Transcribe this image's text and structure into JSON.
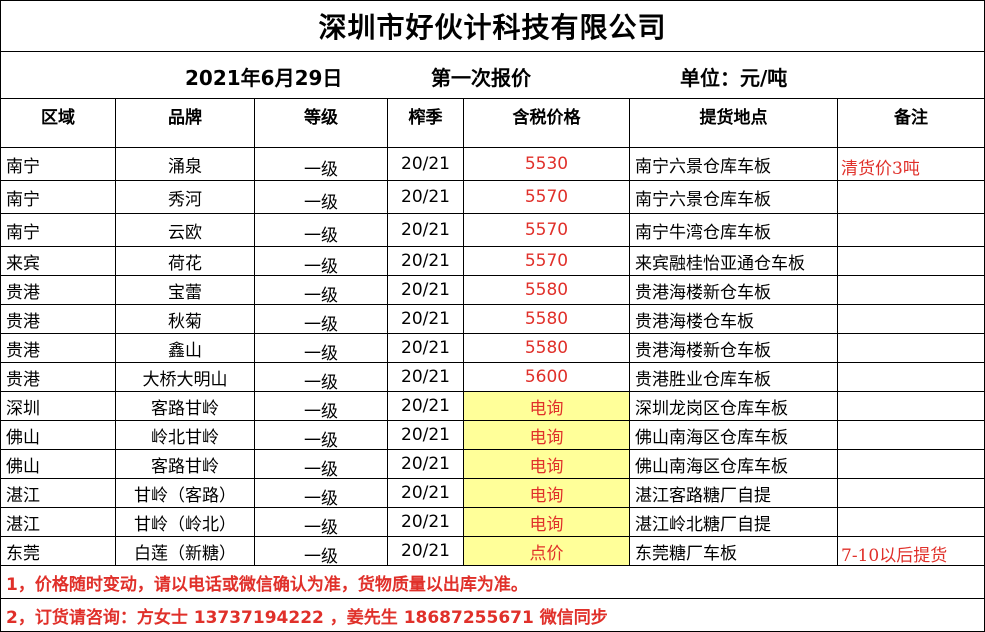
{
  "company": "深圳市好伙计科技有限公司",
  "date": "2021年6月29日",
  "quote_round": "第一次报价",
  "unit": "单位：元/吨",
  "columns": [
    "区域",
    "品牌",
    "等级",
    "榨季",
    "含税价格",
    "提货地点",
    "备注"
  ],
  "rows": [
    {
      "region": "南宁",
      "brand": "涌泉",
      "grade": "一级",
      "season": "20/21",
      "price": "5530",
      "location": "南宁六景仓库车板",
      "note": "清货价3吨"
    },
    {
      "region": "南宁",
      "brand": "秀河",
      "grade": "一级",
      "season": "20/21",
      "price": "5570",
      "location": "南宁六景仓库车板",
      "note": ""
    },
    {
      "region": "南宁",
      "brand": "云欧",
      "grade": "一级",
      "season": "20/21",
      "price": "5570",
      "location": "南宁牛湾仓库车板",
      "note": ""
    },
    {
      "region": "来宾",
      "brand": "荷花",
      "grade": "一级",
      "season": "20/21",
      "price": "5570",
      "location": "来宾融桂怡亚通仓车板",
      "note": ""
    },
    {
      "region": "贵港",
      "brand": "宝蕾",
      "grade": "一级",
      "season": "20/21",
      "price": "5580",
      "location": "贵港海楼新仓车板",
      "note": ""
    },
    {
      "region": "贵港",
      "brand": "秋菊",
      "grade": "一级",
      "season": "20/21",
      "price": "5580",
      "location": "贵港海楼仓车板",
      "note": ""
    },
    {
      "region": "贵港",
      "brand": "鑫山",
      "grade": "一级",
      "season": "20/21",
      "price": "5580",
      "location": "贵港海楼新仓车板",
      "note": ""
    },
    {
      "region": "贵港",
      "brand": "大桥大明山",
      "grade": "一级",
      "season": "20/21",
      "price": "5600",
      "location": "贵港胜业仓库车板",
      "note": ""
    },
    {
      "region": "深圳",
      "brand": "客路甘岭",
      "grade": "一级",
      "season": "20/21",
      "price": "电询",
      "location": "深圳龙岗区仓库车板",
      "note": ""
    },
    {
      "region": "佛山",
      "brand": "岭北甘岭",
      "grade": "一级",
      "season": "20/21",
      "price": "电询",
      "location": "佛山南海区仓库车板",
      "note": ""
    },
    {
      "region": "佛山",
      "brand": "客路甘岭",
      "grade": "一级",
      "season": "20/21",
      "price": "电询",
      "location": "佛山南海区仓库车板",
      "note": ""
    },
    {
      "region": "湛江",
      "brand": "甘岭（客路）",
      "grade": "一级",
      "season": "20/21",
      "price": "电询",
      "location": "湛江客路糖厂自提",
      "note": ""
    },
    {
      "region": "湛江",
      "brand": "甘岭（岭北）",
      "grade": "一级",
      "season": "20/21",
      "price": "电询",
      "location": "湛江岭北糖厂自提",
      "note": ""
    },
    {
      "region": "东莞",
      "brand": "白莲（新糖）",
      "grade": "一级",
      "season": "20/21",
      "price": "点价",
      "location": "东莞糖厂车板",
      "note": "7-10以后提货"
    }
  ],
  "footnotes": [
    "1，价格随时变动，请以电话或微信确认为准，货物质量以出库为准。",
    "2，订货请咨询：方女士 13737194222 ，姜先生 18687255671  微信同步"
  ],
  "colors": {
    "price_red": "#e0302a",
    "highlight_yellow": "#ffff99"
  }
}
